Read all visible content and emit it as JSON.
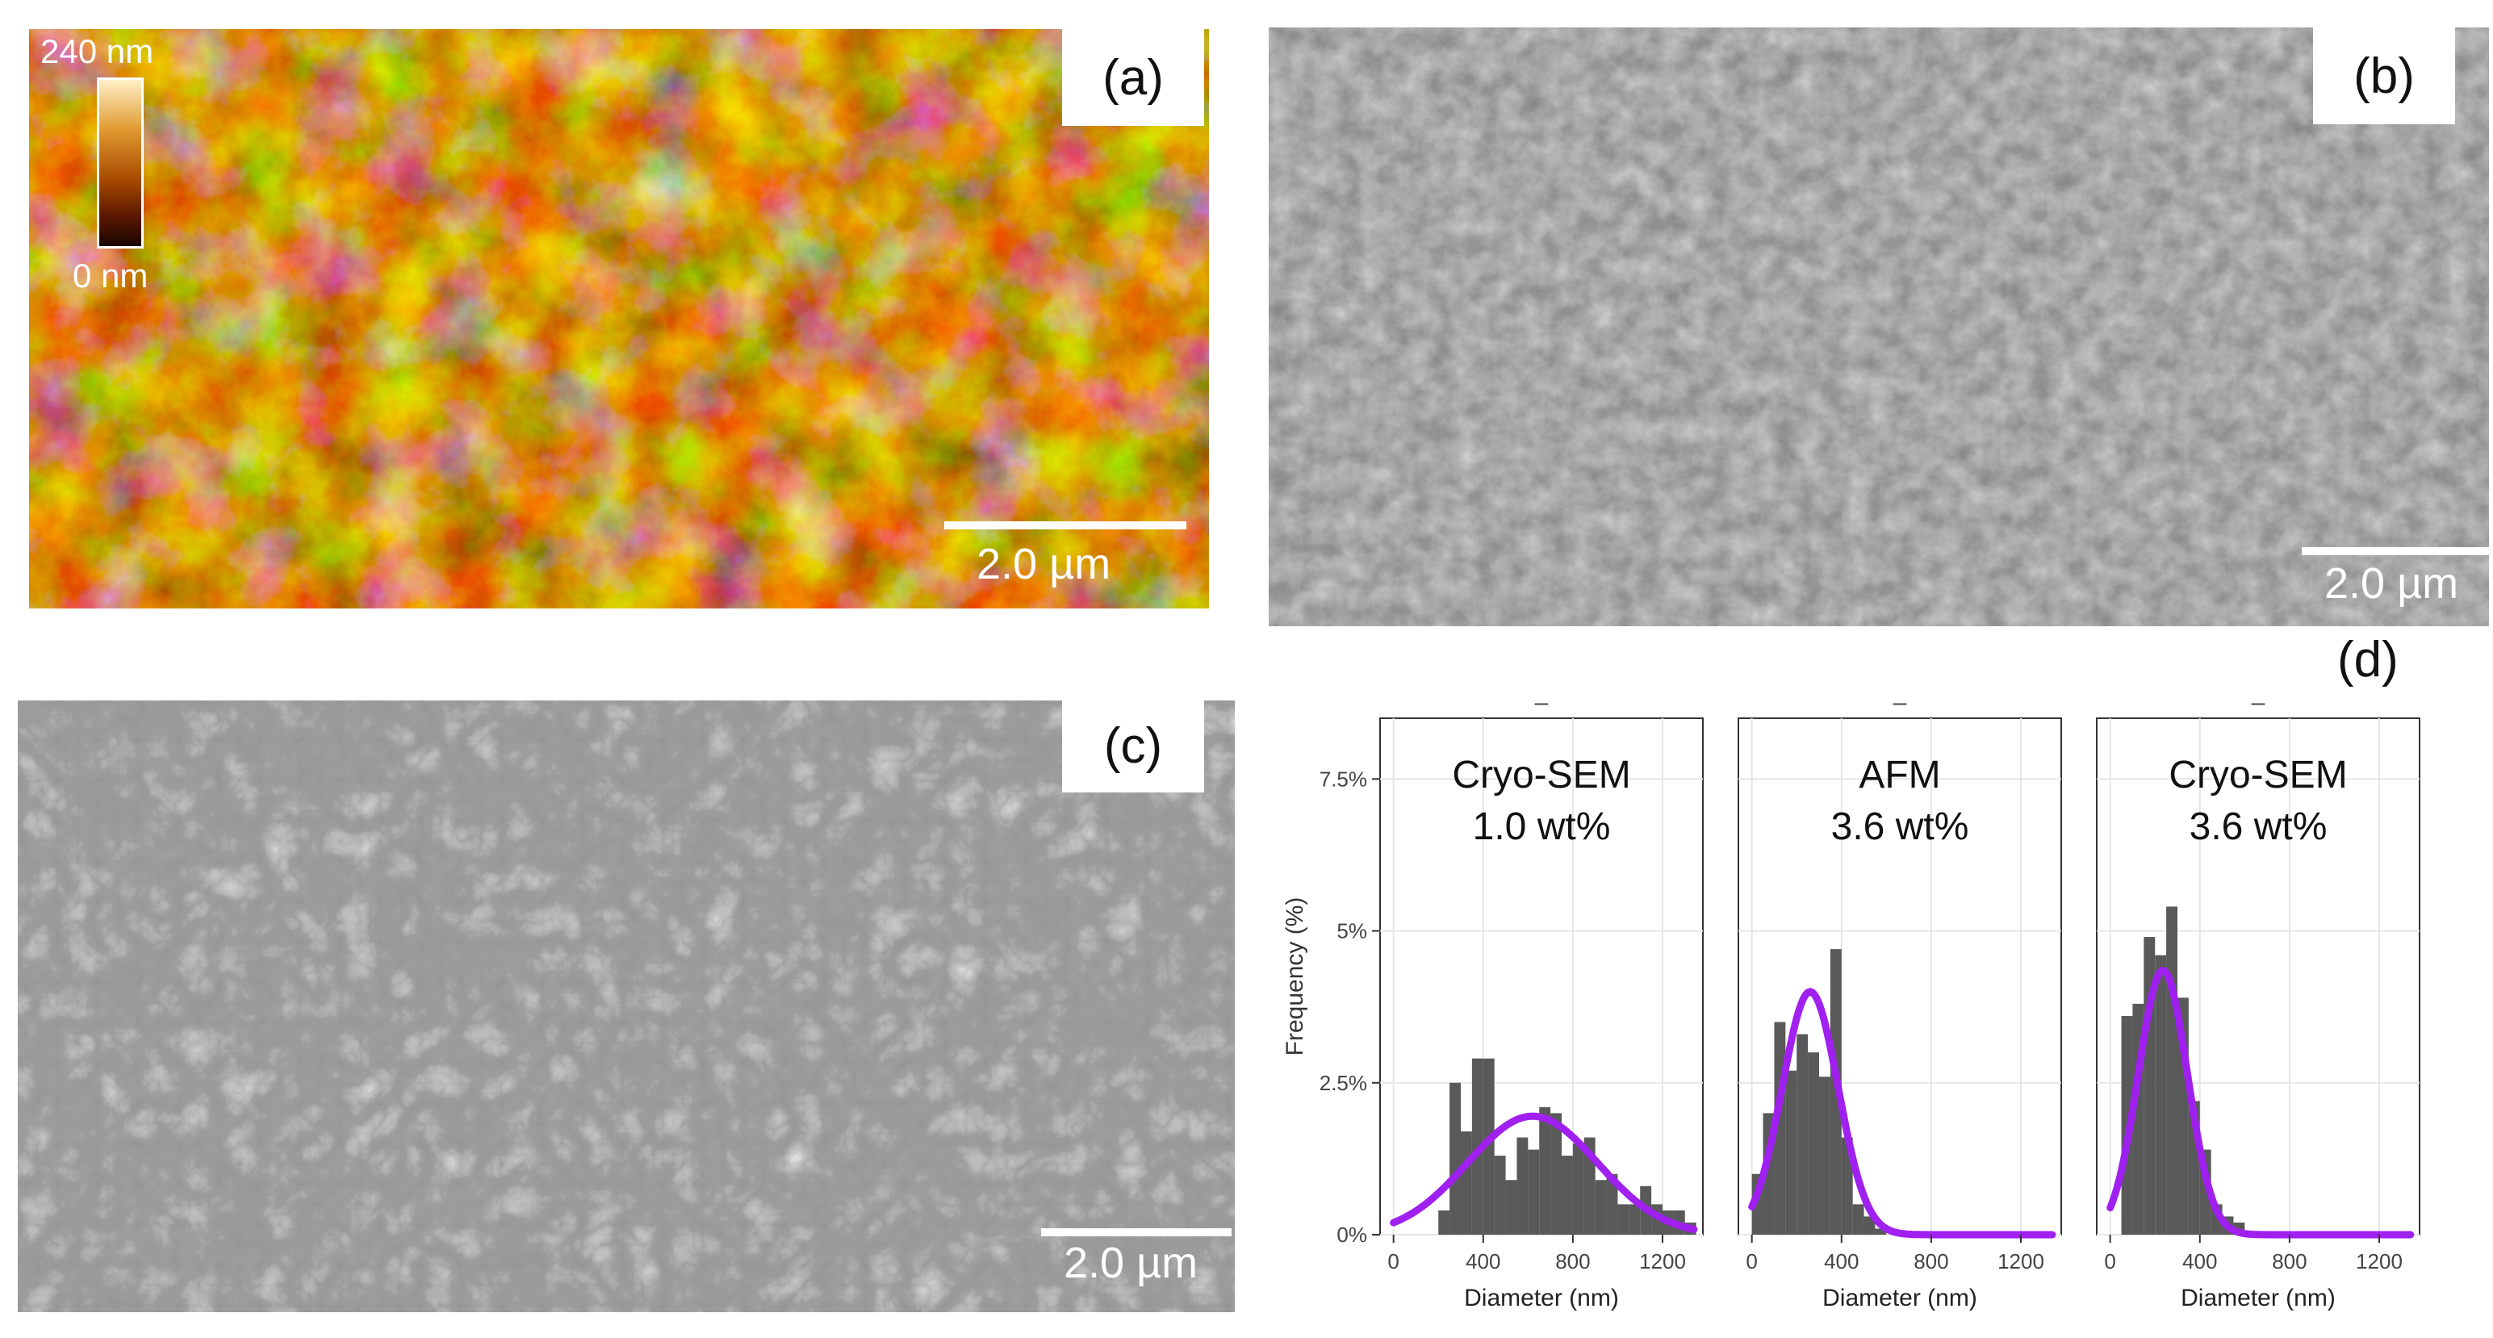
{
  "panels": {
    "a": {
      "label": "(a)",
      "scale_label": "2.0 µm",
      "colorbar": {
        "max_label": "240 nm",
        "min_label": "0 nm"
      },
      "colormap": [
        "#1a0500",
        "#5a1800",
        "#a84a00",
        "#e09a30",
        "#fff0c8"
      ]
    },
    "b": {
      "label": "(b)",
      "scale_label": "2.0 µm"
    },
    "c": {
      "label": "(c)",
      "scale_label": "2.0 µm"
    },
    "d": {
      "label": "(d)"
    }
  },
  "chart_data": {
    "type": "bar",
    "ylabel": "Frequency (%)",
    "xlabel": "Diameter (nm)",
    "xlim": [
      -60,
      1380
    ],
    "ylim": [
      0,
      8.5
    ],
    "x_ticks": [
      0,
      400,
      800,
      1200
    ],
    "y_ticks": [
      0,
      2.5,
      5,
      7.5
    ],
    "y_tick_labels": [
      "0%",
      "2.5%",
      "5%",
      "7.5%"
    ],
    "bin_width": 50,
    "bar_color": "#595959",
    "fit_color": "#a020f0",
    "facets": [
      {
        "strip": "–",
        "title_line1": "Cryo-SEM",
        "title_line2": "1.0 wt%",
        "bin_starts": [
          200,
          250,
          300,
          350,
          400,
          450,
          500,
          550,
          600,
          650,
          700,
          750,
          800,
          850,
          900,
          950,
          1000,
          1050,
          1100,
          1150,
          1200,
          1250,
          1300
        ],
        "values": [
          0.4,
          2.5,
          1.7,
          2.9,
          2.9,
          1.3,
          0.9,
          1.6,
          1.4,
          2.1,
          2.0,
          1.3,
          1.5,
          1.6,
          0.9,
          1.0,
          0.5,
          0.5,
          0.8,
          0.5,
          0.4,
          0.4,
          0.2
        ],
        "fit": {
          "mean": 620,
          "sd": 290,
          "peak": 1.95
        }
      },
      {
        "strip": "–",
        "title_line1": "AFM",
        "title_line2": "3.6 wt%",
        "bin_starts": [
          0,
          50,
          100,
          150,
          200,
          250,
          300,
          350,
          400,
          450,
          500,
          550
        ],
        "values": [
          1.0,
          2.0,
          3.5,
          2.7,
          3.3,
          3.0,
          2.6,
          4.7,
          1.6,
          0.5,
          0.3,
          0.1
        ],
        "fit": {
          "mean": 260,
          "sd": 125,
          "peak": 4.0
        }
      },
      {
        "strip": "–",
        "title_line1": "Cryo-SEM",
        "title_line2": "3.6 wt%",
        "bin_starts": [
          50,
          100,
          150,
          200,
          250,
          300,
          350,
          400,
          450,
          500,
          550
        ],
        "values": [
          3.6,
          3.8,
          4.9,
          4.6,
          5.4,
          3.9,
          2.2,
          1.4,
          0.5,
          0.3,
          0.2
        ],
        "fit": {
          "mean": 235,
          "sd": 110,
          "peak": 4.35
        }
      }
    ]
  }
}
